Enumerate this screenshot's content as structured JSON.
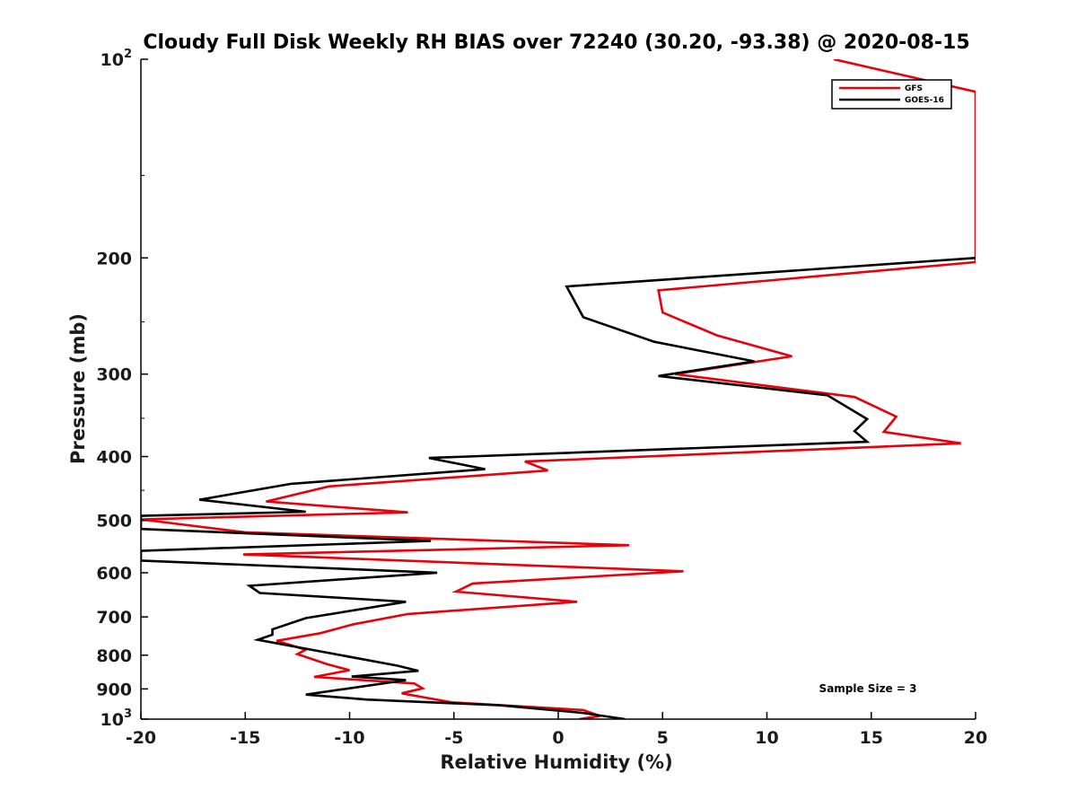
{
  "chart_data": {
    "type": "line",
    "title": "Cloudy Full Disk Weekly RH BIAS over 72240 (30.20, -93.38) @ 2020-08-15",
    "xlabel": "Relative Humidity (%)",
    "ylabel": "Pressure (mb)",
    "xlim": [
      -20,
      20
    ],
    "ylim": [
      1000,
      100
    ],
    "yscale": "log",
    "grid": false,
    "legend_position": "top-right",
    "x_ticks": [
      -20,
      -15,
      -10,
      -5,
      0,
      5,
      10,
      15,
      20
    ],
    "x_tick_labels": [
      "-20",
      "-15",
      "-10",
      "-5",
      "0",
      "5",
      "10",
      "15",
      "20"
    ],
    "y_ticks": [
      {
        "value": 100,
        "base": "10",
        "exp": "2"
      },
      {
        "value": 200,
        "label": "200"
      },
      {
        "value": 300,
        "label": "300"
      },
      {
        "value": 400,
        "label": "400"
      },
      {
        "value": 500,
        "label": "500"
      },
      {
        "value": 600,
        "label": "600"
      },
      {
        "value": 700,
        "label": "700"
      },
      {
        "value": 800,
        "label": "800"
      },
      {
        "value": 900,
        "label": "900"
      },
      {
        "value": 1000,
        "base": "10",
        "exp": "3"
      }
    ],
    "annotation": "Sample Size = 3",
    "series": [
      {
        "name": "GFS",
        "color": "#e8000b",
        "points": [
          [
            13.2,
            100
          ],
          [
            20.0,
            112
          ],
          [
            20.0,
            203
          ],
          [
            4.8,
            224
          ],
          [
            5.0,
            242
          ],
          [
            7.6,
            262
          ],
          [
            11.2,
            282
          ],
          [
            5.6,
            300
          ],
          [
            14.2,
            325
          ],
          [
            16.2,
            348
          ],
          [
            15.6,
            367
          ],
          [
            19.3,
            382
          ],
          [
            -1.6,
            407
          ],
          [
            -0.5,
            420
          ],
          [
            -11.0,
            444
          ],
          [
            -14.0,
            468
          ],
          [
            -7.2,
            486
          ],
          [
            -20.0,
            498
          ],
          [
            -15.0,
            521
          ],
          [
            3.4,
            545
          ],
          [
            -15.1,
            563
          ],
          [
            6.0,
            597
          ],
          [
            -4.1,
            623
          ],
          [
            -4.9,
            641
          ],
          [
            0.9,
            664
          ],
          [
            -7.2,
            693
          ],
          [
            -9.8,
            718
          ],
          [
            -11.4,
            741
          ],
          [
            -13.5,
            761
          ],
          [
            -12.1,
            785
          ],
          [
            -12.5,
            797
          ],
          [
            -11.1,
            825
          ],
          [
            -10.0,
            843
          ],
          [
            -11.7,
            863
          ],
          [
            -6.9,
            883
          ],
          [
            -6.5,
            898
          ],
          [
            -7.5,
            914
          ],
          [
            -6.5,
            926
          ],
          [
            -5.1,
            943
          ],
          [
            1.2,
            969
          ],
          [
            2.0,
            989
          ],
          [
            1.0,
            1000
          ]
        ]
      },
      {
        "name": "GOES-16",
        "color": "#000000",
        "points": [
          [
            20.0,
            200
          ],
          [
            0.4,
            221
          ],
          [
            1.2,
            246
          ],
          [
            4.6,
            268
          ],
          [
            9.4,
            287
          ],
          [
            4.8,
            302
          ],
          [
            12.9,
            323
          ],
          [
            14.8,
            351
          ],
          [
            14.2,
            366
          ],
          [
            14.8,
            380
          ],
          [
            -6.2,
            402
          ],
          [
            -3.5,
            418
          ],
          [
            -12.8,
            440
          ],
          [
            -17.2,
            465
          ],
          [
            -12.1,
            485
          ],
          [
            -20.0,
            492
          ],
          [
            -20.0,
            515
          ],
          [
            -6.1,
            537
          ],
          [
            -20.0,
            556
          ],
          [
            -20.0,
            575
          ],
          [
            -5.8,
            600
          ],
          [
            -14.8,
            628
          ],
          [
            -14.3,
            644
          ],
          [
            -7.3,
            664
          ],
          [
            -12.1,
            703
          ],
          [
            -13.7,
            731
          ],
          [
            -13.7,
            745
          ],
          [
            -14.4,
            758
          ],
          [
            -7.7,
            830
          ],
          [
            -6.7,
            845
          ],
          [
            -9.9,
            862
          ],
          [
            -7.3,
            873
          ],
          [
            -12.1,
            918
          ],
          [
            -9.2,
            934
          ],
          [
            -2.8,
            953
          ],
          [
            1.1,
            978
          ],
          [
            3.2,
            1000
          ]
        ]
      }
    ]
  }
}
